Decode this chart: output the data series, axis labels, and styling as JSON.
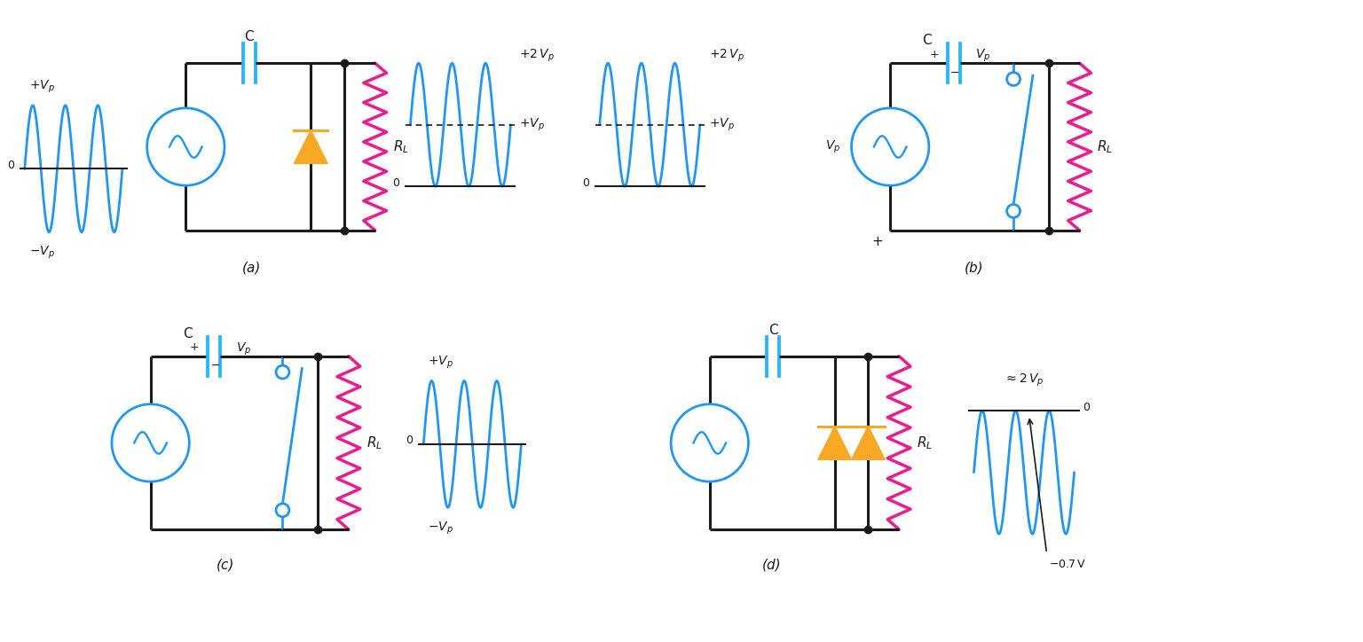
{
  "blue": "#2196F3",
  "cyan": "#29B6F6",
  "orange": "#F9A825",
  "magenta": "#E91E8C",
  "black": "#1a1a1a",
  "white": "#FFFFFF",
  "label_a": "(a)",
  "label_b": "(b)",
  "label_c": "(c)",
  "label_d": "(d)"
}
